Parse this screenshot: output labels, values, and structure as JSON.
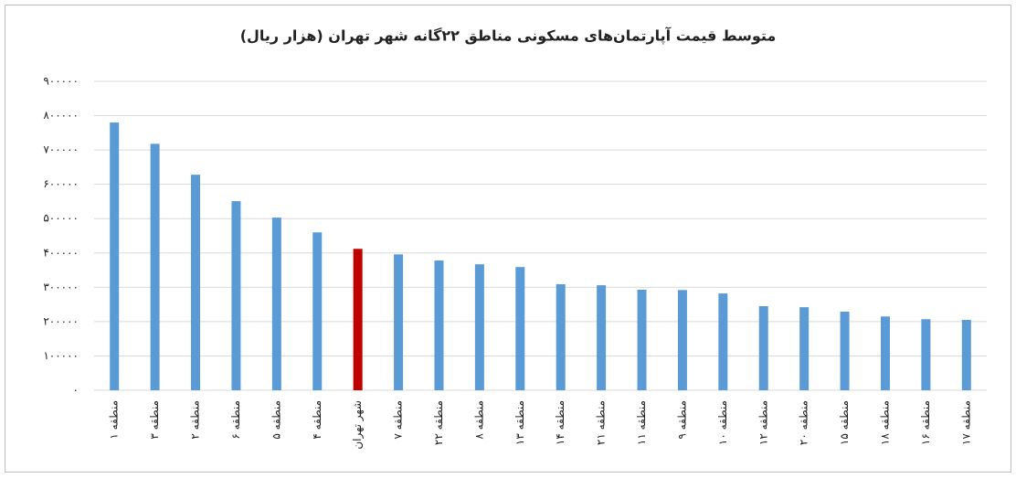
{
  "chart_data": {
    "type": "bar",
    "title": "متوسط قیمت آپارتمان‌های مسکونی مناطق ۲۲گانه شهر تهران (هزار ریال)",
    "categories": [
      "منطقه ۱",
      "منطقه ۳",
      "منطقه ۲",
      "منطقه ۶",
      "منطقه ۵",
      "منطقه ۴",
      "شهر تهران",
      "منطقه ۷",
      "منطقه ۲۲",
      "منطقه ۸",
      "منطقه ۱۳",
      "منطقه ۱۴",
      "منطقه ۲۱",
      "منطقه ۱۱",
      "منطقه ۹",
      "منطقه ۱۰",
      "منطقه ۱۲",
      "منطقه ۲۰",
      "منطقه ۱۵",
      "منطقه ۱۸",
      "منطقه ۱۶",
      "منطقه ۱۷"
    ],
    "values": [
      780000,
      718000,
      628000,
      551000,
      503000,
      460000,
      412000,
      396000,
      378000,
      367000,
      359000,
      309000,
      306000,
      293000,
      292000,
      282000,
      245000,
      242000,
      229000,
      215000,
      207000,
      205000
    ],
    "colors": [
      "#5b9bd5",
      "#5b9bd5",
      "#5b9bd5",
      "#5b9bd5",
      "#5b9bd5",
      "#5b9bd5",
      "#c00000",
      "#5b9bd5",
      "#5b9bd5",
      "#5b9bd5",
      "#5b9bd5",
      "#5b9bd5",
      "#5b9bd5",
      "#5b9bd5",
      "#5b9bd5",
      "#5b9bd5",
      "#5b9bd5",
      "#5b9bd5",
      "#5b9bd5",
      "#5b9bd5",
      "#5b9bd5",
      "#5b9bd5"
    ],
    "ylim": [
      0,
      900000
    ],
    "yticks": [
      {
        "value": 0,
        "label": "۰"
      },
      {
        "value": 100000,
        "label": "۱۰۰۰۰۰"
      },
      {
        "value": 200000,
        "label": "۲۰۰۰۰۰"
      },
      {
        "value": 300000,
        "label": "۳۰۰۰۰۰"
      },
      {
        "value": 400000,
        "label": "۴۰۰۰۰۰"
      },
      {
        "value": 500000,
        "label": "۵۰۰۰۰۰"
      },
      {
        "value": 600000,
        "label": "۶۰۰۰۰۰"
      },
      {
        "value": 700000,
        "label": "۷۰۰۰۰۰"
      },
      {
        "value": 800000,
        "label": "۸۰۰۰۰۰"
      },
      {
        "value": 900000,
        "label": "۹۰۰۰۰۰"
      }
    ],
    "grid": true
  }
}
